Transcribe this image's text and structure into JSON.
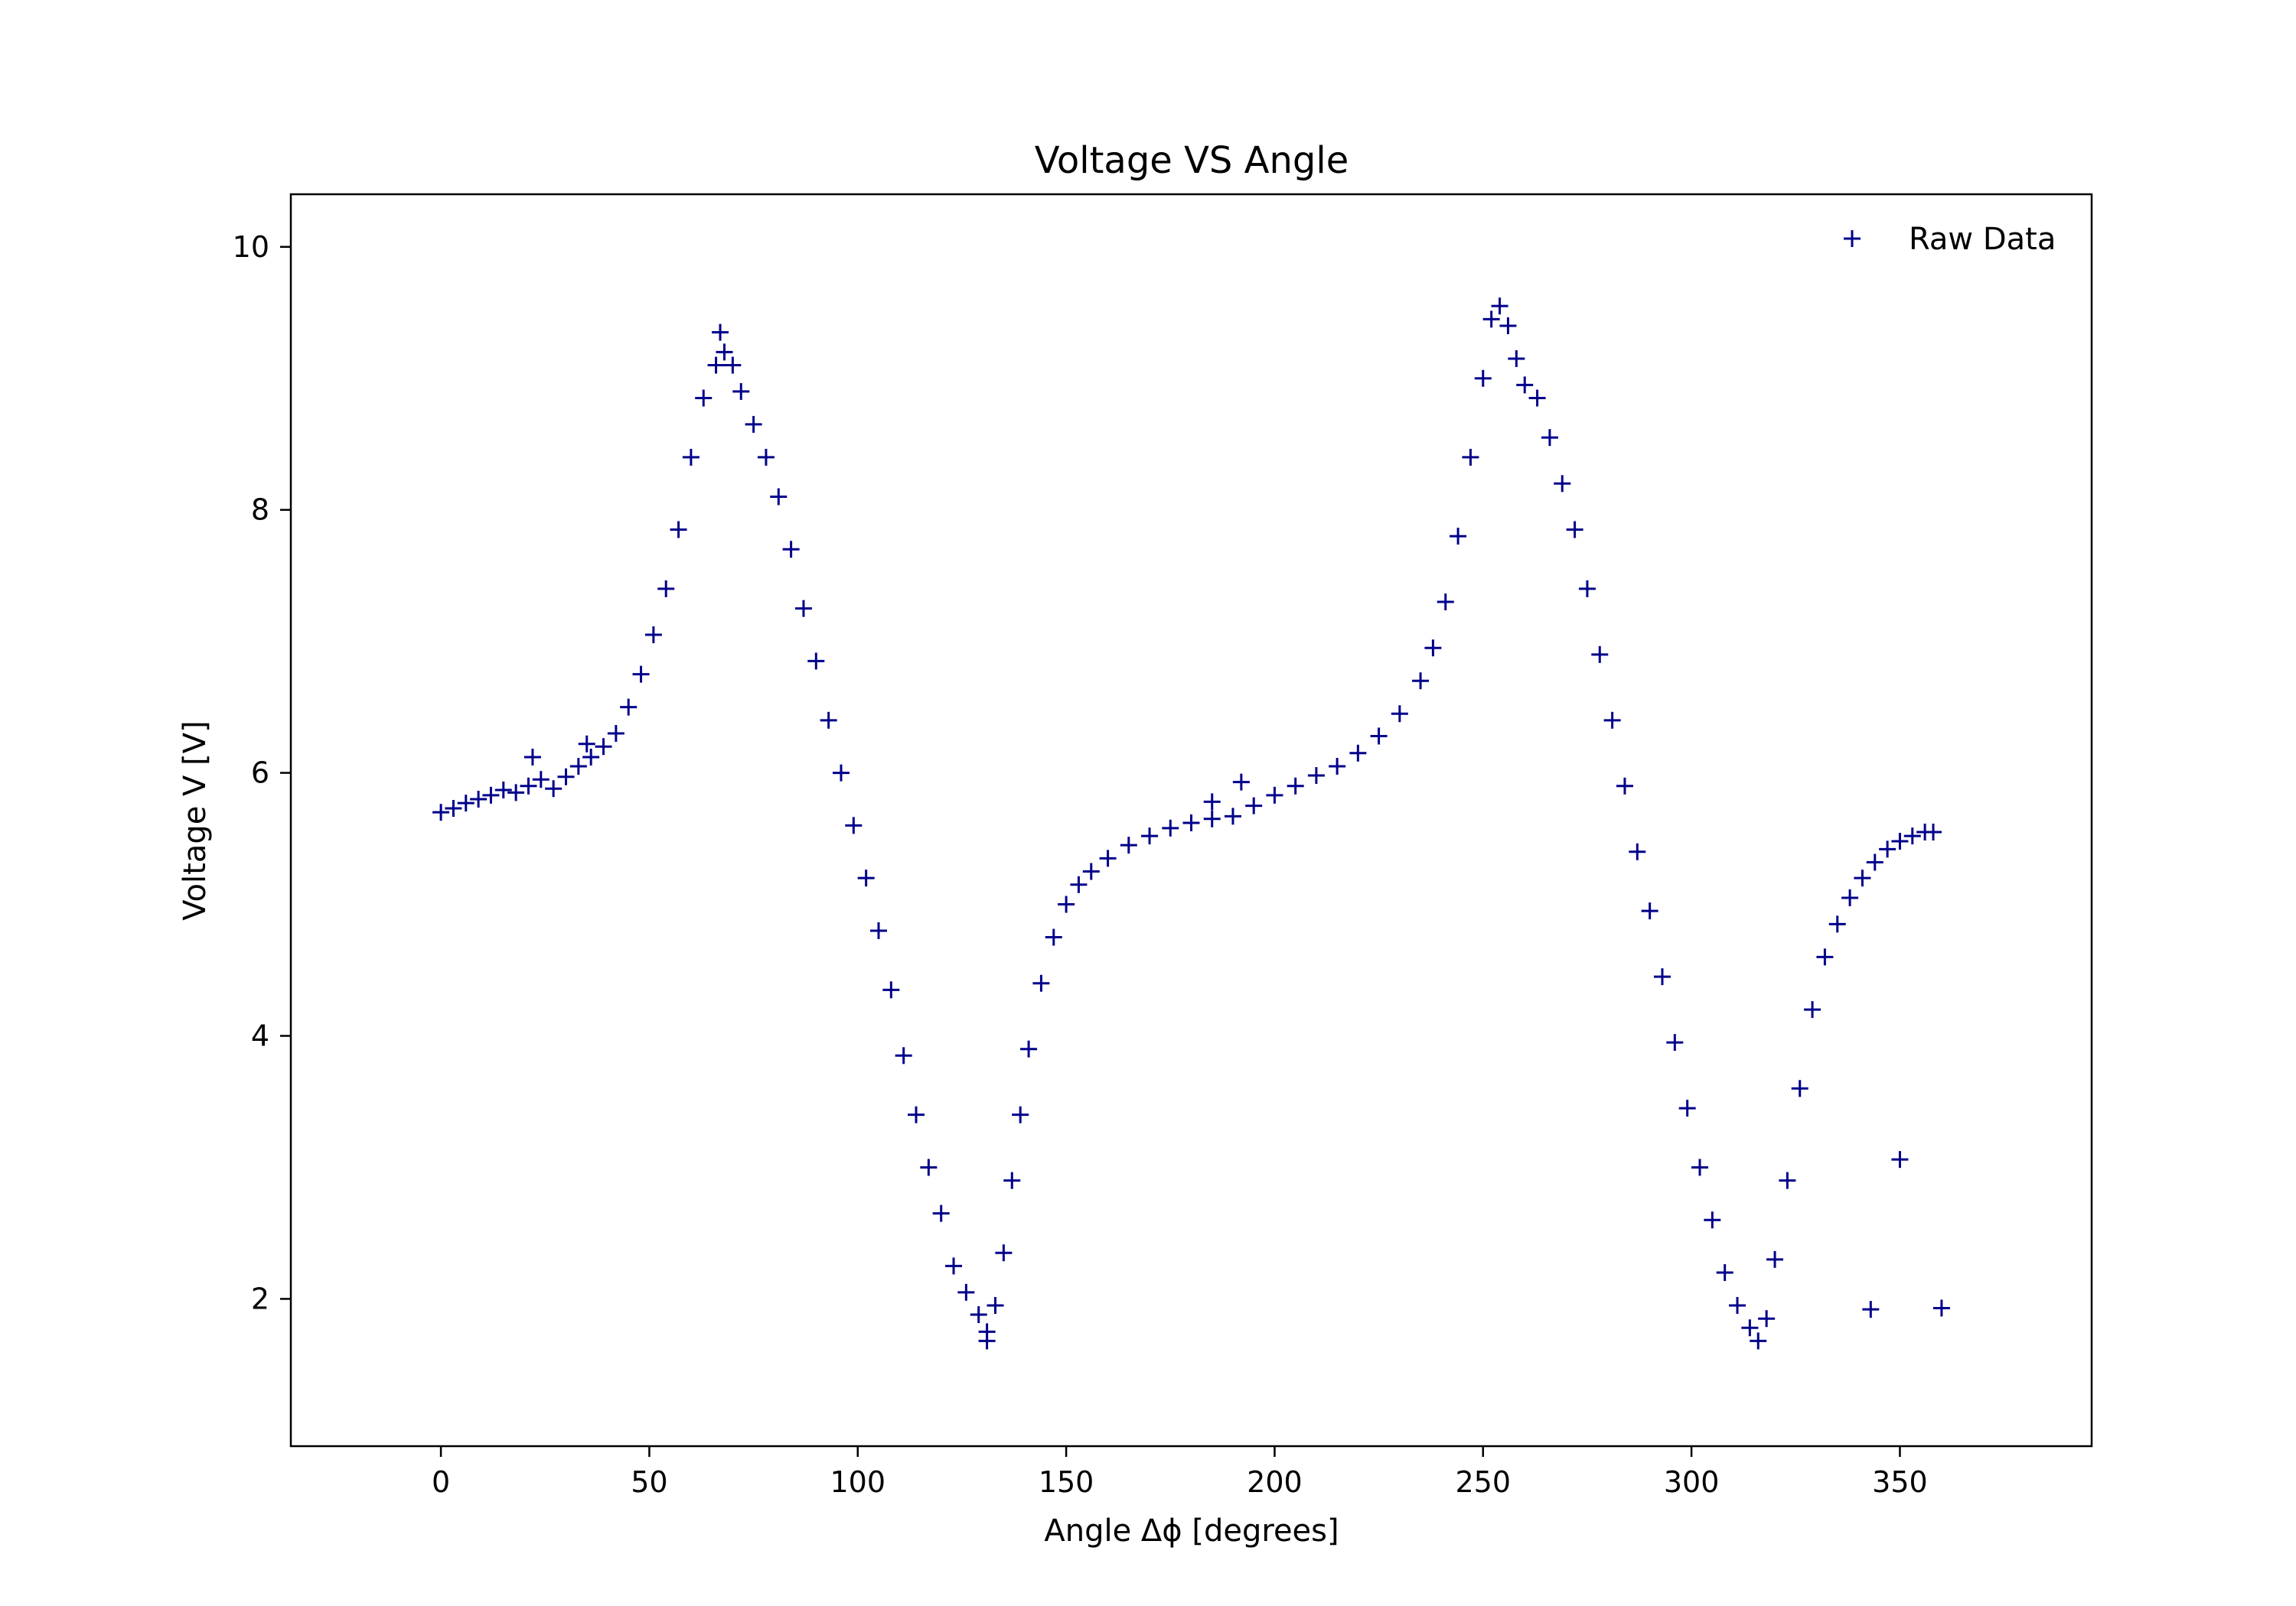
{
  "chart_data": {
    "type": "scatter",
    "title": "Voltage VS Angle",
    "xlabel": "Angle Δϕ [degrees]",
    "ylabel": "Voltage V [V]",
    "xlim": [
      -36,
      396
    ],
    "ylim": [
      0.88,
      10.4
    ],
    "xticks": [
      0,
      50,
      100,
      150,
      200,
      250,
      300,
      350
    ],
    "yticks": [
      2,
      4,
      6,
      8,
      10
    ],
    "grid": false,
    "legend_position": "top-right",
    "marker": "+",
    "color": "#00008b",
    "series": [
      {
        "name": "Raw Data",
        "points": [
          [
            0,
            5.7
          ],
          [
            3,
            5.73
          ],
          [
            6,
            5.77
          ],
          [
            9,
            5.8
          ],
          [
            12,
            5.83
          ],
          [
            15,
            5.87
          ],
          [
            18,
            5.85
          ],
          [
            21,
            5.9
          ],
          [
            24,
            5.95
          ],
          [
            27,
            5.88
          ],
          [
            30,
            5.97
          ],
          [
            33,
            6.05
          ],
          [
            36,
            6.12
          ],
          [
            39,
            6.2
          ],
          [
            42,
            6.3
          ],
          [
            45,
            6.5
          ],
          [
            48,
            6.75
          ],
          [
            51,
            7.05
          ],
          [
            54,
            7.4
          ],
          [
            57,
            7.85
          ],
          [
            60,
            8.4
          ],
          [
            63,
            8.85
          ],
          [
            66,
            9.1
          ],
          [
            68,
            9.2
          ],
          [
            70,
            9.1
          ],
          [
            72,
            8.9
          ],
          [
            75,
            8.65
          ],
          [
            78,
            8.4
          ],
          [
            81,
            8.1
          ],
          [
            84,
            7.7
          ],
          [
            87,
            7.25
          ],
          [
            90,
            6.85
          ],
          [
            93,
            6.4
          ],
          [
            96,
            6.0
          ],
          [
            99,
            5.6
          ],
          [
            102,
            5.2
          ],
          [
            105,
            4.8
          ],
          [
            108,
            4.35
          ],
          [
            111,
            3.85
          ],
          [
            114,
            3.4
          ],
          [
            117,
            3.0
          ],
          [
            120,
            2.65
          ],
          [
            123,
            2.25
          ],
          [
            126,
            2.05
          ],
          [
            129,
            1.88
          ],
          [
            131,
            1.75
          ],
          [
            133,
            1.95
          ],
          [
            135,
            2.35
          ],
          [
            137,
            2.9
          ],
          [
            139,
            3.4
          ],
          [
            141,
            3.9
          ],
          [
            144,
            4.4
          ],
          [
            147,
            4.75
          ],
          [
            150,
            5.0
          ],
          [
            153,
            5.15
          ],
          [
            156,
            5.25
          ],
          [
            160,
            5.35
          ],
          [
            165,
            5.45
          ],
          [
            170,
            5.52
          ],
          [
            175,
            5.58
          ],
          [
            180,
            5.62
          ],
          [
            185,
            5.65
          ],
          [
            190,
            5.67
          ],
          [
            195,
            5.75
          ],
          [
            200,
            5.83
          ],
          [
            205,
            5.9
          ],
          [
            210,
            5.98
          ],
          [
            215,
            6.05
          ],
          [
            220,
            6.15
          ],
          [
            225,
            6.28
          ],
          [
            230,
            6.45
          ],
          [
            235,
            6.7
          ],
          [
            238,
            6.95
          ],
          [
            241,
            7.3
          ],
          [
            244,
            7.8
          ],
          [
            247,
            8.4
          ],
          [
            250,
            9.0
          ],
          [
            252,
            9.45
          ],
          [
            254,
            9.55
          ],
          [
            256,
            9.4
          ],
          [
            258,
            9.15
          ],
          [
            260,
            8.95
          ],
          [
            263,
            8.85
          ],
          [
            266,
            8.55
          ],
          [
            269,
            8.2
          ],
          [
            272,
            7.85
          ],
          [
            275,
            7.4
          ],
          [
            278,
            6.9
          ],
          [
            281,
            6.4
          ],
          [
            284,
            5.9
          ],
          [
            287,
            5.4
          ],
          [
            290,
            4.95
          ],
          [
            293,
            4.45
          ],
          [
            296,
            3.95
          ],
          [
            299,
            3.45
          ],
          [
            302,
            3.0
          ],
          [
            305,
            2.6
          ],
          [
            308,
            2.2
          ],
          [
            311,
            1.95
          ],
          [
            314,
            1.78
          ],
          [
            316,
            1.68
          ],
          [
            318,
            1.85
          ],
          [
            320,
            2.3
          ],
          [
            323,
            2.9
          ],
          [
            326,
            3.6
          ],
          [
            329,
            4.2
          ],
          [
            332,
            4.6
          ],
          [
            335,
            4.85
          ],
          [
            338,
            5.05
          ],
          [
            341,
            5.2
          ],
          [
            344,
            5.32
          ],
          [
            347,
            5.42
          ],
          [
            350,
            5.48
          ],
          [
            353,
            5.52
          ],
          [
            356,
            5.55
          ],
          [
            358,
            5.55
          ],
          [
            343,
            1.92
          ],
          [
            350,
            3.06
          ],
          [
            360,
            1.93
          ],
          [
            192,
            5.93
          ],
          [
            185,
            5.78
          ],
          [
            22,
            6.12
          ],
          [
            35,
            6.22
          ],
          [
            67,
            9.35
          ],
          [
            131,
            1.68
          ]
        ]
      }
    ]
  }
}
